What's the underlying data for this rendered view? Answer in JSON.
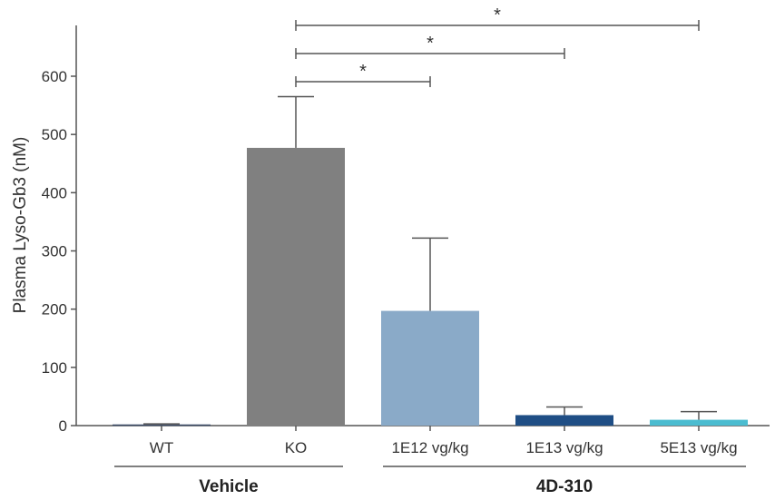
{
  "chart_data": {
    "type": "bar",
    "ylabel": "Plasma Lyso-Gb3 (nM)",
    "ylim": [
      0,
      600
    ],
    "yticks": [
      0,
      100,
      200,
      300,
      400,
      500,
      600
    ],
    "categories": [
      "WT",
      "KO",
      "1E12 vg/kg",
      "1E13 vg/kg",
      "5E13 vg/kg"
    ],
    "values": [
      2,
      477,
      197,
      18,
      10
    ],
    "errors": [
      1,
      88,
      125,
      14,
      14
    ],
    "colors": [
      "#3a4a66",
      "#808080",
      "#8aaac8",
      "#1f4e85",
      "#4bbcd0"
    ],
    "groups": [
      {
        "label": "Vehicle",
        "categories": [
          "WT",
          "KO"
        ]
      },
      {
        "label": "4D-310",
        "categories": [
          "1E12 vg/kg",
          "1E13 vg/kg",
          "5E13 vg/kg"
        ]
      }
    ],
    "significance": [
      {
        "from": "KO",
        "to": "1E12 vg/kg",
        "label": "*"
      },
      {
        "from": "KO",
        "to": "1E13 vg/kg",
        "label": "*"
      },
      {
        "from": "KO",
        "to": "5E13 vg/kg",
        "label": "*"
      }
    ],
    "grid": false,
    "legend": "none"
  }
}
